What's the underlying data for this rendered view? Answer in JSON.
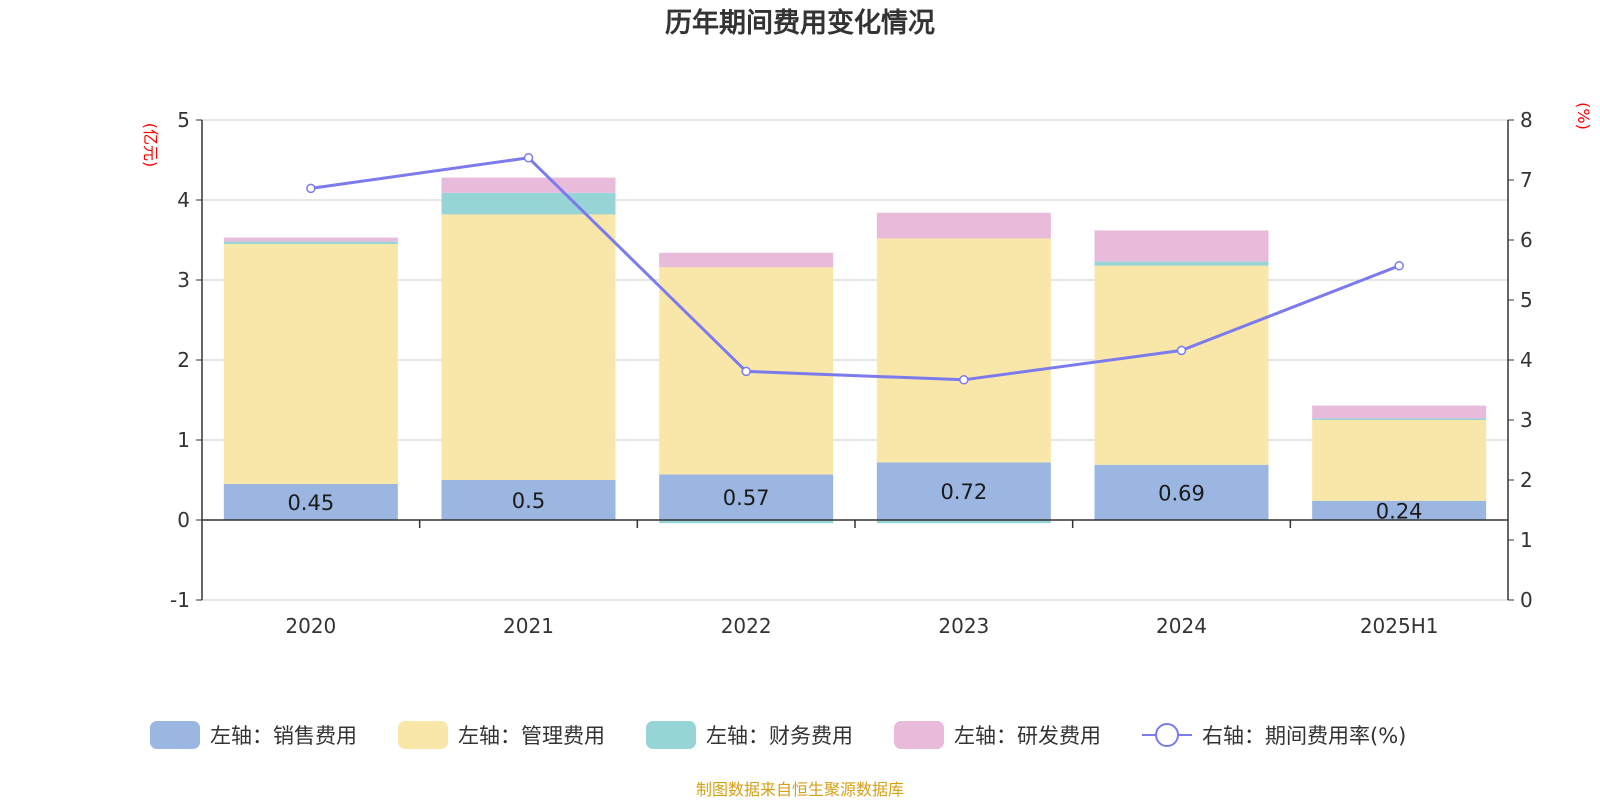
{
  "chart_data": {
    "type": "bar",
    "title": "历年期间费用变化情况",
    "categories": [
      "2020",
      "2021",
      "2022",
      "2023",
      "2024",
      "2025H1"
    ],
    "left_axis": {
      "unit": "(亿元)",
      "ylim": [
        -1,
        5
      ],
      "ticks": [
        "-1",
        "0",
        "1",
        "2",
        "3",
        "4",
        "5"
      ]
    },
    "right_axis": {
      "unit": "(%)",
      "ylim": [
        0,
        8
      ],
      "ticks": [
        "0",
        "1",
        "2",
        "3",
        "4",
        "5",
        "6",
        "7",
        "8"
      ]
    },
    "series": [
      {
        "name": "左轴：销售费用",
        "type": "bar",
        "axis": "left",
        "color": "#9bb6e0",
        "values": [
          0.45,
          0.5,
          0.57,
          0.72,
          0.69,
          0.24
        ],
        "labels": [
          "0.45",
          "0.5",
          "0.57",
          "0.72",
          "0.69",
          "0.24"
        ]
      },
      {
        "name": "左轴：管理费用",
        "type": "bar",
        "axis": "left",
        "color": "#f8e7a8",
        "values": [
          3.0,
          3.32,
          2.59,
          2.8,
          2.49,
          1.01
        ]
      },
      {
        "name": "左轴：财务费用",
        "type": "bar",
        "axis": "left",
        "color": "#96d4d6",
        "values": [
          0.03,
          0.27,
          -0.04,
          -0.04,
          0.05,
          0.02
        ]
      },
      {
        "name": "左轴：研发费用",
        "type": "bar",
        "axis": "left",
        "color": "#e8bbdb",
        "values": [
          0.05,
          0.19,
          0.18,
          0.32,
          0.39,
          0.16
        ]
      },
      {
        "name": "右轴：期间费用率(%)",
        "type": "line",
        "axis": "right",
        "color": "#7b7bed",
        "values": [
          6.86,
          7.37,
          3.81,
          3.67,
          4.16,
          5.57
        ]
      }
    ],
    "grid": true,
    "legend_position": "bottom",
    "source_note": "制图数据来自恒生聚源数据库"
  }
}
